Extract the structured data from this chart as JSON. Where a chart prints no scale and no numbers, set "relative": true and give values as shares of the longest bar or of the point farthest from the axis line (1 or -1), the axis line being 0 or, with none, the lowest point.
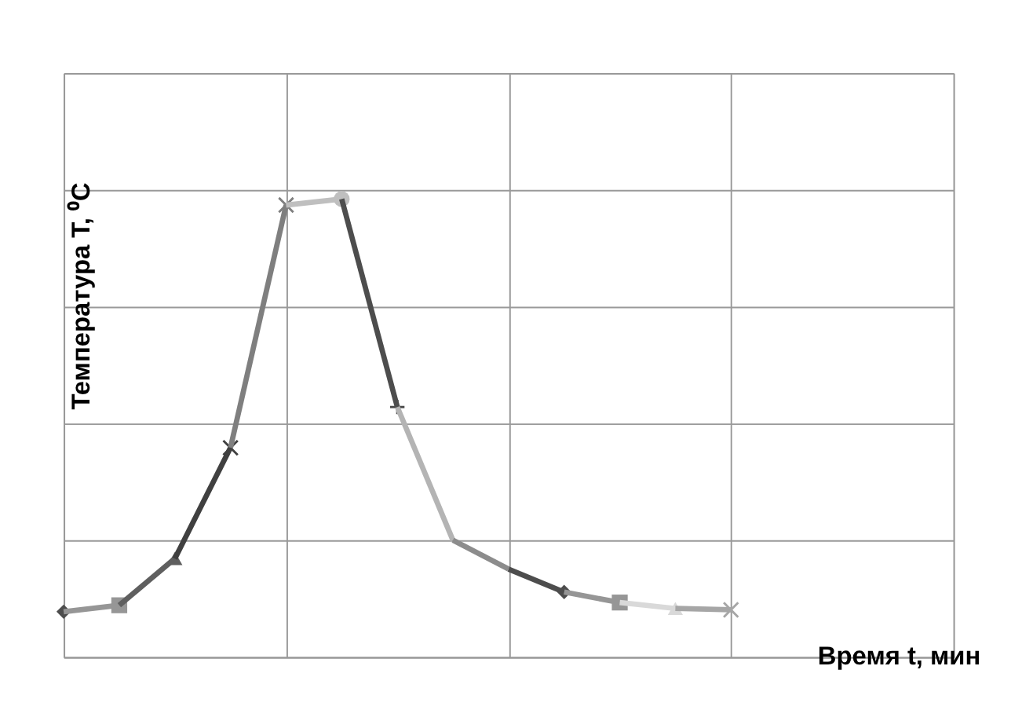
{
  "chart_data": {
    "type": "line",
    "relative": true,
    "xlabel": "Время t, мин",
    "ylabel": "Температура T, ⁰C",
    "grid": true,
    "line_style": "solid",
    "categories": [
      null,
      null,
      null,
      null,
      null,
      null,
      null,
      null,
      null,
      null,
      null,
      null,
      null
    ],
    "series": [
      {
        "color": "#4d4d4d",
        "marker": "diamond",
        "values": [
          0.099,
          null,
          null,
          null,
          null,
          null,
          null,
          null,
          null,
          null,
          null,
          null,
          null
        ]
      },
      {
        "color": "#969696",
        "marker": "square",
        "values": [
          0.099,
          0.113,
          null,
          null,
          null,
          null,
          null,
          null,
          null,
          null,
          null,
          null,
          null
        ]
      },
      {
        "color": "#5f5f5f",
        "marker": "triangle",
        "values": [
          null,
          0.113,
          0.215,
          null,
          null,
          null,
          null,
          null,
          null,
          null,
          null,
          null,
          null
        ]
      },
      {
        "color": "#404040",
        "marker": "cross",
        "values": [
          null,
          null,
          0.215,
          0.457,
          null,
          null,
          null,
          null,
          null,
          null,
          null,
          null,
          null
        ]
      },
      {
        "color": "#7f7f7f",
        "marker": "cross",
        "values": [
          null,
          null,
          null,
          0.457,
          0.987,
          null,
          null,
          null,
          null,
          null,
          null,
          null,
          null
        ]
      },
      {
        "color": "#bfbfbf",
        "marker": "circle",
        "values": [
          null,
          null,
          null,
          null,
          0.987,
          1,
          null,
          null,
          null,
          null,
          null,
          null,
          null
        ]
      },
      {
        "color": "#4d4d4d",
        "marker": "plus",
        "values": [
          null,
          null,
          null,
          null,
          null,
          1,
          0.546,
          null,
          null,
          null,
          null,
          null,
          null
        ]
      },
      {
        "color": "#b4b4b4",
        "marker": "none",
        "values": [
          null,
          null,
          null,
          null,
          null,
          null,
          0.546,
          0.255,
          null,
          null,
          null,
          null,
          null
        ]
      },
      {
        "color": "#8c8c8c",
        "marker": "none",
        "values": [
          null,
          null,
          null,
          null,
          null,
          null,
          null,
          0.255,
          0.192,
          null,
          null,
          null,
          null
        ]
      },
      {
        "color": "#4d4d4d",
        "marker": "diamond",
        "values": [
          null,
          null,
          null,
          null,
          null,
          null,
          null,
          null,
          0.192,
          0.142,
          null,
          null,
          null
        ]
      },
      {
        "color": "#969696",
        "marker": "square",
        "values": [
          null,
          null,
          null,
          null,
          null,
          null,
          null,
          null,
          null,
          0.142,
          0.119,
          null,
          null
        ]
      },
      {
        "color": "#d9d9d9",
        "marker": "triangle",
        "values": [
          null,
          null,
          null,
          null,
          null,
          null,
          null,
          null,
          null,
          null,
          0.119,
          0.106,
          null
        ]
      },
      {
        "color": "#a6a6a6",
        "marker": "cross",
        "values": [
          null,
          null,
          null,
          null,
          null,
          null,
          null,
          null,
          null,
          null,
          null,
          0.106,
          0.103
        ]
      }
    ]
  }
}
